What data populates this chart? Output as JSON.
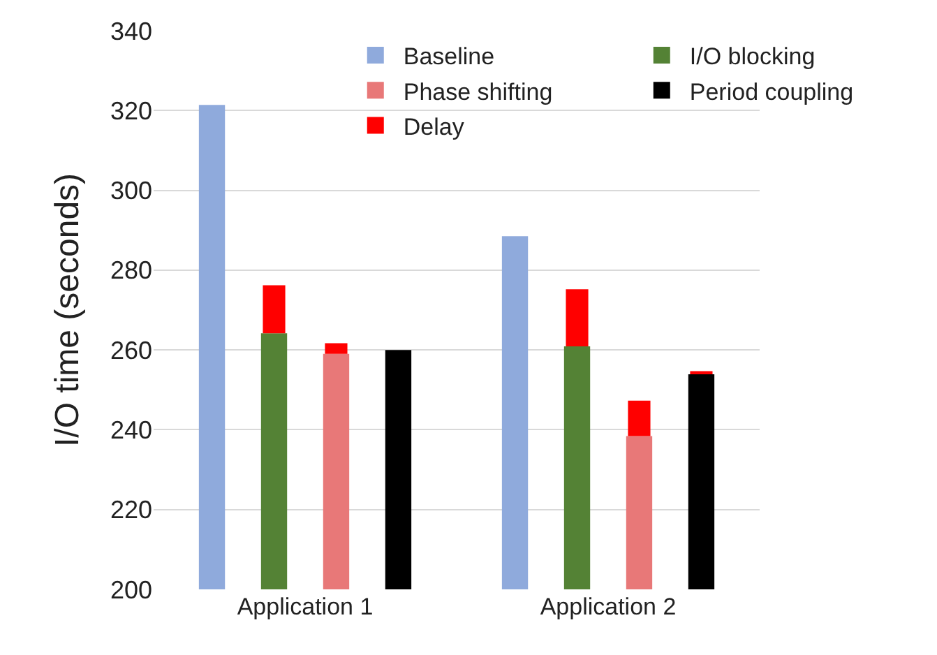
{
  "chart_data": {
    "type": "bar",
    "ylabel": "I/O time (seconds)",
    "categories": [
      "Application 1",
      "Application 2"
    ],
    "series": [
      {
        "name": "Baseline",
        "color": "#8faadc",
        "values": [
          321.4,
          288.5
        ]
      },
      {
        "name": "I/O blocking",
        "color": "#548235",
        "values": [
          264.2,
          260.9
        ]
      },
      {
        "name": "Phase shifting",
        "color": "#e87878",
        "values": [
          259.0,
          238.4
        ]
      },
      {
        "name": "Period coupling",
        "color": "#000000",
        "values": [
          260.0,
          253.9
        ]
      },
      {
        "name": "Delay",
        "color": "#ff0000",
        "values": [
          12.0,
          14.3
        ],
        "base": [
          264.2,
          260.9
        ]
      },
      {
        "color": "#ff0000",
        "values": [
          2.7,
          8.9
        ],
        "base": [
          259.0,
          238.4
        ]
      },
      {
        "color": "#ff0000",
        "values": [
          null,
          0.8
        ],
        "base": [
          null,
          253.9
        ]
      }
    ],
    "ylim": [
      200,
      340
    ],
    "yticks": [
      200,
      220,
      240,
      260,
      280,
      300,
      320,
      340
    ],
    "grid": "y",
    "legend": "top right"
  }
}
